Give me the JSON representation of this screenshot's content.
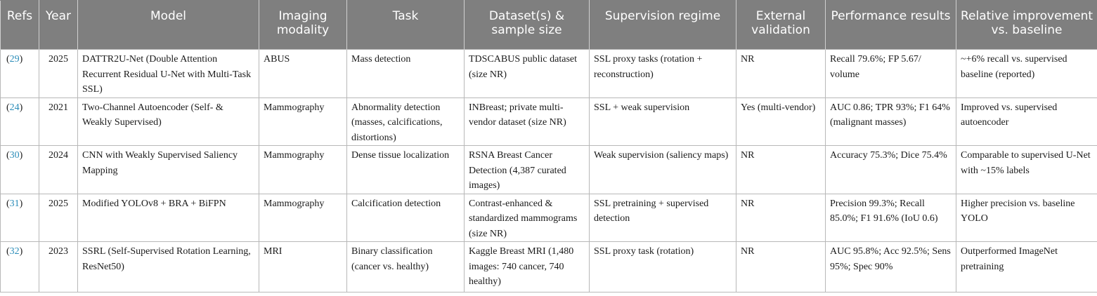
{
  "headers": {
    "refs": "Refs",
    "year": "Year",
    "model": "Model",
    "modality": "Imaging modality",
    "task": "Task",
    "dataset": "Dataset(s) & sample size",
    "supervision": "Supervision regime",
    "external": "External validation",
    "performance": "Performance results",
    "improvement": "Relative improvement vs. baseline"
  },
  "rows": [
    {
      "ref_open": "(",
      "ref_num": "29",
      "ref_close": ")",
      "year": "2025",
      "model": "DATTR2U-Net (Double Attention Recurrent Residual U-Net with Multi-Task SSL)",
      "modality": "ABUS",
      "task": "Mass detection",
      "dataset": "TDSCABUS public dataset (size NR)",
      "supervision": "SSL proxy tasks (rotation + reconstruction)",
      "external": "NR",
      "performance": "Recall 79.6%; FP 5.67/ volume",
      "improvement": "~+6% recall vs. supervised baseline (reported)"
    },
    {
      "ref_open": "(",
      "ref_num": "24",
      "ref_close": ")",
      "year": "2021",
      "model": "Two-Channel Autoencoder (Self- & Weakly Supervised)",
      "modality": "Mammography",
      "task": "Abnormality detection (masses, calcifications, distortions)",
      "dataset": "INBreast; private multi-vendor dataset (size NR)",
      "supervision": "SSL + weak supervision",
      "external": "Yes (multi-vendor)",
      "performance": "AUC 0.86; TPR 93%; F1 64% (malignant masses)",
      "improvement": "Improved vs. supervised autoencoder"
    },
    {
      "ref_open": "(",
      "ref_num": "30",
      "ref_close": ")",
      "year": "2024",
      "model": "CNN with Weakly Supervised Saliency Mapping",
      "modality": "Mammography",
      "task": "Dense tissue localization",
      "dataset": "RSNA Breast Cancer Detection (4,387 curated images)",
      "supervision": "Weak supervision (saliency maps)",
      "external": "NR",
      "performance": "Accuracy 75.3%; Dice 75.4%",
      "improvement": "Comparable to supervised U-Net with ~15% labels"
    },
    {
      "ref_open": "(",
      "ref_num": "31",
      "ref_close": ")",
      "year": "2025",
      "model": "Modified YOLOv8 + BRA + BiFPN",
      "modality": "Mammography",
      "task": "Calcification detection",
      "dataset": "Contrast-enhanced & standardized mammograms (size NR)",
      "supervision": "SSL pretraining + supervised detection",
      "external": "NR",
      "performance": "Precision 99.3%; Recall 85.0%; F1 91.6% (IoU 0.6)",
      "improvement": "Higher precision vs. baseline YOLO"
    },
    {
      "ref_open": "(",
      "ref_num": "32",
      "ref_close": ")",
      "year": "2023",
      "model": "SSRL (Self-Supervised Rotation Learning, ResNet50)",
      "modality": "MRI",
      "task": "Binary classification (cancer vs. healthy)",
      "dataset": "Kaggle Breast MRI (1,480 images: 740 cancer, 740 healthy)",
      "supervision": "SSL proxy task (rotation)",
      "external": "NR",
      "performance": "AUC 95.8%; Acc 92.5%; Sens 95%; Spec 90%",
      "improvement": "Outperformed ImageNet pretraining"
    }
  ]
}
